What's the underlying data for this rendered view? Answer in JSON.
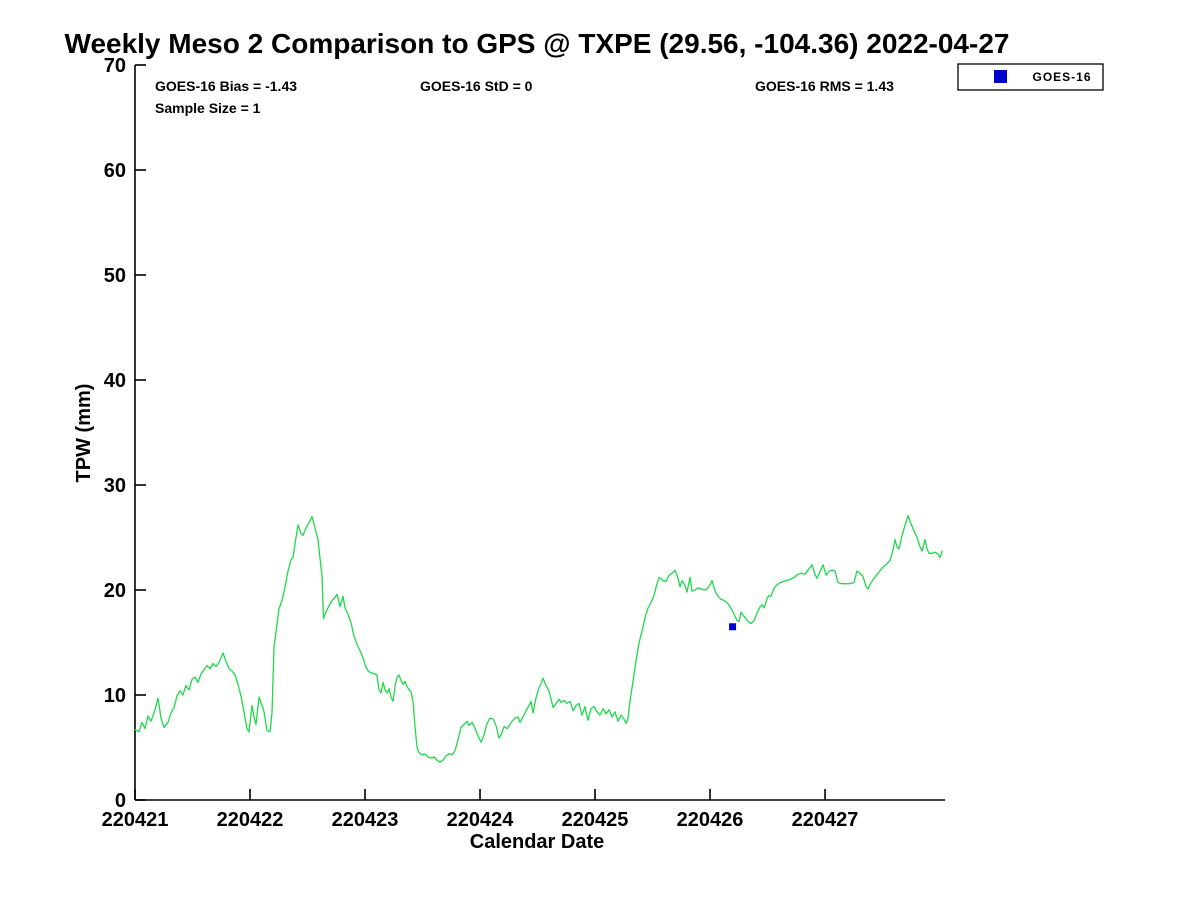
{
  "title": "Weekly Meso 2 Comparison to GPS @ TXPE (29.56, -104.36) 2022-04-27",
  "annotations": {
    "bias": "GOES-16 Bias = -1.43",
    "std": "GOES-16 StD = 0",
    "rms": "GOES-16 RMS = 1.43",
    "sample_size": "Sample Size = 1"
  },
  "legend": {
    "position": "top-right-outside",
    "entries": [
      {
        "label": "GOES-16",
        "marker": "square",
        "color": "#0000cd"
      }
    ]
  },
  "colors": {
    "background": "#ffffff",
    "axis": "#000000",
    "gps_line": "#1fd94a",
    "goes_marker": "#0000cd"
  },
  "chart_data": {
    "type": "line",
    "title": "Weekly Meso 2 Comparison to GPS @ TXPE (29.56, -104.36) 2022-04-27",
    "xlabel": "Calendar Date",
    "ylabel": "TPW (mm)",
    "grid": false,
    "xlim": [
      0,
      7.043
    ],
    "ylim": [
      0,
      70
    ],
    "y_ticks": [
      0,
      10,
      20,
      30,
      40,
      50,
      60,
      70
    ],
    "x_tick_positions": [
      0,
      1,
      2,
      3,
      4,
      5,
      6
    ],
    "x_tick_labels": [
      "220421",
      "220422",
      "220423",
      "220424",
      "220425",
      "220426",
      "220427"
    ],
    "x_unit_note": "days since 220421 (YYMMDD)",
    "series": [
      {
        "name": "GPS",
        "type": "line",
        "color": "#1fd94a",
        "points": [
          [
            0,
            6.7
          ],
          [
            0.035,
            6.5
          ],
          [
            0.061,
            7.4
          ],
          [
            0.087,
            6.8
          ],
          [
            0.113,
            8.0
          ],
          [
            0.139,
            7.5
          ],
          [
            0.174,
            8.6
          ],
          [
            0.2,
            9.7
          ],
          [
            0.226,
            7.8
          ],
          [
            0.252,
            6.9
          ],
          [
            0.287,
            7.4
          ],
          [
            0.313,
            8.3
          ],
          [
            0.339,
            8.8
          ],
          [
            0.365,
            9.9
          ],
          [
            0.391,
            10.4
          ],
          [
            0.417,
            10.0
          ],
          [
            0.443,
            10.9
          ],
          [
            0.47,
            10.5
          ],
          [
            0.496,
            11.5
          ],
          [
            0.522,
            11.7
          ],
          [
            0.548,
            11.2
          ],
          [
            0.574,
            12.0
          ],
          [
            0.6,
            12.4
          ],
          [
            0.626,
            12.8
          ],
          [
            0.652,
            12.5
          ],
          [
            0.678,
            13.0
          ],
          [
            0.704,
            12.7
          ],
          [
            0.73,
            13.1
          ],
          [
            0.765,
            14.0
          ],
          [
            0.791,
            13.2
          ],
          [
            0.817,
            12.5
          ],
          [
            0.843,
            12.3
          ],
          [
            0.87,
            11.9
          ],
          [
            0.896,
            11.0
          ],
          [
            0.922,
            9.9
          ],
          [
            0.948,
            8.4
          ],
          [
            0.974,
            6.8
          ],
          [
            0.991,
            6.5
          ],
          [
            1.017,
            9.0
          ],
          [
            1.035,
            7.9
          ],
          [
            1.052,
            7.2
          ],
          [
            1.078,
            9.8
          ],
          [
            1.104,
            9.0
          ],
          [
            1.122,
            8.4
          ],
          [
            1.148,
            6.6
          ],
          [
            1.174,
            6.5
          ],
          [
            1.191,
            8.3
          ],
          [
            1.209,
            14.6
          ],
          [
            1.226,
            16.0
          ],
          [
            1.252,
            18.2
          ],
          [
            1.278,
            19.0
          ],
          [
            1.304,
            20.3
          ],
          [
            1.33,
            21.8
          ],
          [
            1.357,
            22.9
          ],
          [
            1.374,
            23.1
          ],
          [
            1.4,
            25.0
          ],
          [
            1.417,
            26.2
          ],
          [
            1.443,
            25.4
          ],
          [
            1.461,
            25.2
          ],
          [
            1.487,
            25.9
          ],
          [
            1.513,
            26.4
          ],
          [
            1.539,
            27.0
          ],
          [
            1.565,
            25.9
          ],
          [
            1.591,
            24.8
          ],
          [
            1.609,
            23.0
          ],
          [
            1.626,
            21.4
          ],
          [
            1.639,
            17.3
          ],
          [
            1.661,
            17.9
          ],
          [
            1.687,
            18.5
          ],
          [
            1.713,
            19.0
          ],
          [
            1.739,
            19.3
          ],
          [
            1.757,
            19.6
          ],
          [
            1.783,
            18.4
          ],
          [
            1.809,
            19.4
          ],
          [
            1.826,
            18.3
          ],
          [
            1.852,
            17.7
          ],
          [
            1.878,
            16.9
          ],
          [
            1.904,
            15.6
          ],
          [
            1.93,
            14.8
          ],
          [
            1.957,
            14.2
          ],
          [
            1.983,
            13.5
          ],
          [
            2.009,
            12.6
          ],
          [
            2.035,
            12.2
          ],
          [
            2.061,
            12.1
          ],
          [
            2.087,
            12.0
          ],
          [
            2.104,
            11.9
          ],
          [
            2.122,
            10.5
          ],
          [
            2.139,
            10.2
          ],
          [
            2.157,
            11.2
          ],
          [
            2.174,
            10.5
          ],
          [
            2.191,
            10.2
          ],
          [
            2.209,
            10.6
          ],
          [
            2.226,
            9.8
          ],
          [
            2.243,
            9.4
          ],
          [
            2.261,
            10.8
          ],
          [
            2.278,
            11.7
          ],
          [
            2.296,
            11.9
          ],
          [
            2.313,
            11.4
          ],
          [
            2.33,
            11.0
          ],
          [
            2.348,
            11.3
          ],
          [
            2.365,
            10.8
          ],
          [
            2.383,
            10.5
          ],
          [
            2.4,
            10.3
          ],
          [
            2.417,
            9.4
          ],
          [
            2.435,
            7.0
          ],
          [
            2.452,
            5.0
          ],
          [
            2.47,
            4.5
          ],
          [
            2.496,
            4.3
          ],
          [
            2.522,
            4.4
          ],
          [
            2.548,
            4.1
          ],
          [
            2.574,
            4.0
          ],
          [
            2.6,
            4.1
          ],
          [
            2.626,
            3.8
          ],
          [
            2.652,
            3.6
          ],
          [
            2.678,
            3.8
          ],
          [
            2.704,
            4.2
          ],
          [
            2.73,
            4.4
          ],
          [
            2.757,
            4.3
          ],
          [
            2.783,
            4.7
          ],
          [
            2.809,
            5.8
          ],
          [
            2.835,
            6.9
          ],
          [
            2.861,
            7.2
          ],
          [
            2.887,
            7.5
          ],
          [
            2.904,
            7.1
          ],
          [
            2.93,
            7.4
          ],
          [
            2.957,
            6.8
          ],
          [
            2.983,
            6.1
          ],
          [
            3.009,
            5.5
          ],
          [
            3.035,
            6.2
          ],
          [
            3.061,
            7.3
          ],
          [
            3.087,
            7.8
          ],
          [
            3.113,
            7.7
          ],
          [
            3.139,
            7.1
          ],
          [
            3.165,
            5.9
          ],
          [
            3.183,
            6.2
          ],
          [
            3.209,
            7.0
          ],
          [
            3.235,
            6.8
          ],
          [
            3.261,
            7.2
          ],
          [
            3.278,
            7.5
          ],
          [
            3.304,
            7.8
          ],
          [
            3.33,
            7.9
          ],
          [
            3.348,
            7.4
          ],
          [
            3.374,
            7.9
          ],
          [
            3.4,
            8.5
          ],
          [
            3.426,
            9.0
          ],
          [
            3.443,
            9.4
          ],
          [
            3.461,
            8.3
          ],
          [
            3.487,
            9.7
          ],
          [
            3.513,
            10.7
          ],
          [
            3.53,
            11.1
          ],
          [
            3.548,
            11.6
          ],
          [
            3.574,
            10.9
          ],
          [
            3.6,
            10.4
          ],
          [
            3.617,
            9.6
          ],
          [
            3.635,
            8.8
          ],
          [
            3.661,
            9.2
          ],
          [
            3.687,
            9.6
          ],
          [
            3.704,
            9.3
          ],
          [
            3.73,
            9.5
          ],
          [
            3.757,
            9.2
          ],
          [
            3.783,
            9.4
          ],
          [
            3.809,
            8.5
          ],
          [
            3.835,
            9.0
          ],
          [
            3.861,
            9.2
          ],
          [
            3.887,
            8.1
          ],
          [
            3.913,
            8.9
          ],
          [
            3.939,
            7.6
          ],
          [
            3.965,
            8.7
          ],
          [
            3.991,
            8.9
          ],
          [
            4.017,
            8.4
          ],
          [
            4.043,
            8.1
          ],
          [
            4.07,
            8.7
          ],
          [
            4.096,
            8.2
          ],
          [
            4.122,
            8.6
          ],
          [
            4.148,
            7.9
          ],
          [
            4.174,
            8.4
          ],
          [
            4.2,
            7.5
          ],
          [
            4.226,
            8.1
          ],
          [
            4.252,
            7.7
          ],
          [
            4.27,
            7.3
          ],
          [
            4.287,
            7.8
          ],
          [
            4.304,
            9.4
          ],
          [
            4.33,
            11.3
          ],
          [
            4.357,
            13.3
          ],
          [
            4.383,
            15.0
          ],
          [
            4.409,
            16.1
          ],
          [
            4.435,
            17.4
          ],
          [
            4.461,
            18.3
          ],
          [
            4.487,
            18.8
          ],
          [
            4.513,
            19.5
          ],
          [
            4.539,
            20.6
          ],
          [
            4.557,
            21.2
          ],
          [
            4.574,
            21.1
          ],
          [
            4.591,
            20.9
          ],
          [
            4.617,
            20.8
          ],
          [
            4.643,
            21.4
          ],
          [
            4.67,
            21.6
          ],
          [
            4.696,
            21.9
          ],
          [
            4.722,
            21.1
          ],
          [
            4.739,
            20.3
          ],
          [
            4.757,
            20.9
          ],
          [
            4.783,
            20.4
          ],
          [
            4.8,
            19.8
          ],
          [
            4.826,
            21.2
          ],
          [
            4.843,
            19.9
          ],
          [
            4.87,
            20.0
          ],
          [
            4.896,
            20.2
          ],
          [
            4.922,
            20.1
          ],
          [
            4.948,
            20.0
          ],
          [
            4.974,
            20.1
          ],
          [
            5.0,
            20.5
          ],
          [
            5.017,
            20.9
          ],
          [
            5.043,
            19.9
          ],
          [
            5.07,
            19.4
          ],
          [
            5.096,
            19.1
          ],
          [
            5.122,
            19.0
          ],
          [
            5.148,
            18.8
          ],
          [
            5.174,
            18.4
          ],
          [
            5.2,
            17.9
          ],
          [
            5.217,
            17.5
          ],
          [
            5.235,
            17.1
          ],
          [
            5.252,
            17.0
          ],
          [
            5.27,
            17.9
          ],
          [
            5.287,
            17.6
          ],
          [
            5.304,
            17.4
          ],
          [
            5.33,
            17.0
          ],
          [
            5.357,
            16.8
          ],
          [
            5.383,
            17.1
          ],
          [
            5.409,
            17.8
          ],
          [
            5.435,
            18.4
          ],
          [
            5.452,
            18.6
          ],
          [
            5.47,
            18.3
          ],
          [
            5.496,
            19.2
          ],
          [
            5.513,
            19.5
          ],
          [
            5.53,
            19.4
          ],
          [
            5.557,
            20.2
          ],
          [
            5.583,
            20.5
          ],
          [
            5.609,
            20.7
          ],
          [
            5.635,
            20.8
          ],
          [
            5.661,
            20.9
          ],
          [
            5.696,
            21.0
          ],
          [
            5.73,
            21.2
          ],
          [
            5.765,
            21.5
          ],
          [
            5.791,
            21.6
          ],
          [
            5.826,
            21.5
          ],
          [
            5.852,
            21.9
          ],
          [
            5.887,
            22.4
          ],
          [
            5.913,
            21.5
          ],
          [
            5.93,
            21.1
          ],
          [
            5.957,
            21.8
          ],
          [
            5.983,
            22.4
          ],
          [
            6.009,
            21.4
          ],
          [
            6.035,
            21.8
          ],
          [
            6.061,
            21.9
          ],
          [
            6.087,
            21.8
          ],
          [
            6.113,
            20.7
          ],
          [
            6.148,
            20.6
          ],
          [
            6.183,
            20.6
          ],
          [
            6.217,
            20.6
          ],
          [
            6.252,
            20.7
          ],
          [
            6.278,
            21.8
          ],
          [
            6.304,
            21.6
          ],
          [
            6.33,
            21.3
          ],
          [
            6.357,
            20.3
          ],
          [
            6.374,
            20.1
          ],
          [
            6.4,
            20.7
          ],
          [
            6.426,
            21.1
          ],
          [
            6.461,
            21.6
          ],
          [
            6.496,
            22.1
          ],
          [
            6.53,
            22.4
          ],
          [
            6.565,
            22.8
          ],
          [
            6.591,
            23.8
          ],
          [
            6.609,
            24.8
          ],
          [
            6.626,
            24.1
          ],
          [
            6.643,
            23.9
          ],
          [
            6.67,
            25.2
          ],
          [
            6.696,
            26.2
          ],
          [
            6.722,
            27.1
          ],
          [
            6.748,
            26.3
          ],
          [
            6.774,
            25.6
          ],
          [
            6.8,
            25.0
          ],
          [
            6.826,
            24.1
          ],
          [
            6.843,
            23.7
          ],
          [
            6.87,
            24.8
          ],
          [
            6.887,
            23.9
          ],
          [
            6.904,
            23.5
          ],
          [
            6.93,
            23.5
          ],
          [
            6.957,
            23.6
          ],
          [
            6.983,
            23.4
          ],
          [
            7.0,
            23.1
          ],
          [
            7.017,
            23.7
          ]
        ]
      },
      {
        "name": "GOES-16",
        "type": "scatter",
        "marker": "square",
        "color": "#0000cd",
        "points": [
          [
            5.196,
            16.5
          ]
        ]
      }
    ]
  }
}
